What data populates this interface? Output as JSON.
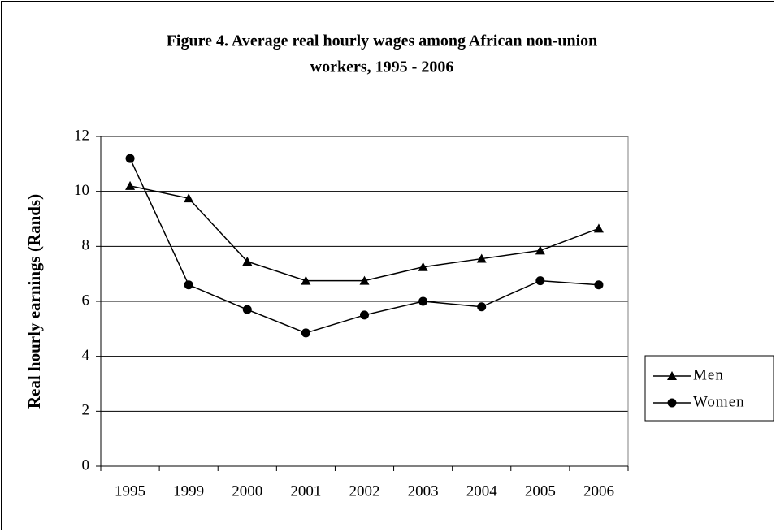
{
  "chart_data": {
    "type": "line",
    "title": "Figure 4. Average real hourly wages among African non-union",
    "subtitle": "workers, 1995 - 2006",
    "y_label": "Real hourly earnings (Rands)",
    "categories": [
      "1995",
      "1999",
      "2000",
      "2001",
      "2002",
      "2003",
      "2004",
      "2005",
      "2006"
    ],
    "series": [
      {
        "name": "Men",
        "color": "#000000",
        "marker": "triangle",
        "values": [
          10.2,
          9.75,
          7.45,
          6.75,
          6.75,
          7.25,
          7.55,
          7.85,
          8.65
        ]
      },
      {
        "name": "Women",
        "color": "#000000",
        "marker": "circle",
        "values": [
          11.2,
          6.6,
          5.7,
          4.85,
          5.5,
          6.0,
          5.8,
          6.75,
          6.6
        ]
      }
    ],
    "ylim": [
      0,
      12
    ],
    "yticks": [
      0,
      2,
      4,
      6,
      8,
      10,
      12
    ],
    "grid": true,
    "legend": "right"
  }
}
